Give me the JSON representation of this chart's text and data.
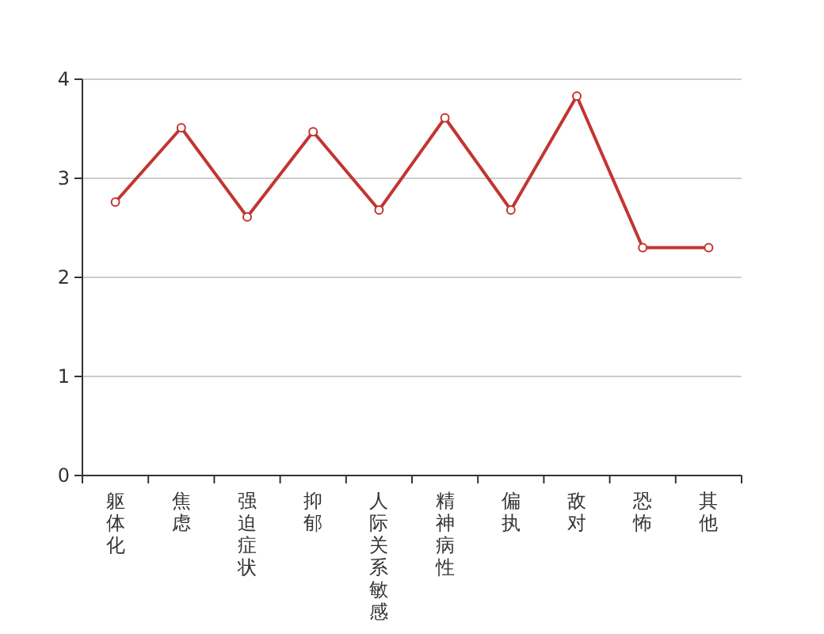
{
  "chart_data": {
    "type": "line",
    "categories": [
      "躯体化",
      "焦虑",
      "强迫症状",
      "抑郁",
      "人际关系敏感",
      "精神病性",
      "偏执",
      "敌对",
      "恐怖",
      "其他"
    ],
    "series": [
      {
        "color": "#c23531",
        "values": [
          2.76,
          3.51,
          2.61,
          3.47,
          2.68,
          3.61,
          2.68,
          3.83,
          2.3,
          2.3
        ]
      }
    ],
    "ylim": [
      0,
      4
    ],
    "yticks": [
      0,
      1,
      2,
      3,
      4
    ],
    "grid": "y",
    "marker": "circle",
    "line_style": "solid"
  }
}
